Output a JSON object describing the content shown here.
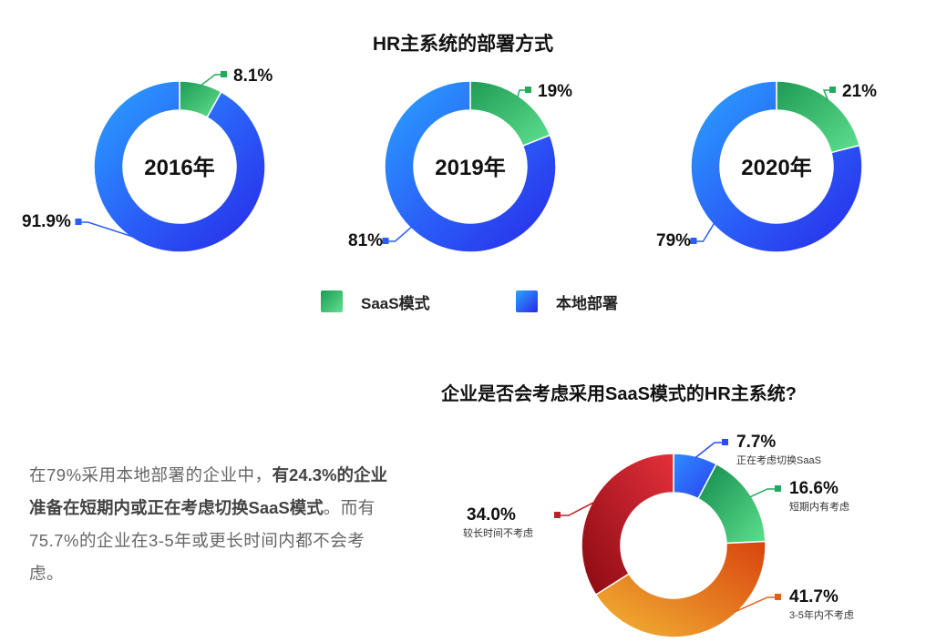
{
  "colors": {
    "saas": "#2fb86a",
    "local": "#2a3ff5",
    "pie2": [
      "#2a4df0",
      "#1ea860",
      "#e0601a",
      "#c41e2a"
    ]
  },
  "chart_data": [
    {
      "type": "pie",
      "title": "HR主系统的部署方式",
      "legend": [
        "SaaS模式",
        "本地部署"
      ],
      "donuts": [
        {
          "center_label": "2016年",
          "values": [
            8.1,
            91.9
          ],
          "labels": [
            "8.1%",
            "91.9%"
          ]
        },
        {
          "center_label": "2019年",
          "values": [
            19,
            81
          ],
          "labels": [
            "19%",
            "81%"
          ]
        },
        {
          "center_label": "2020年",
          "values": [
            21,
            79
          ],
          "labels": [
            "21%",
            "79%"
          ]
        }
      ]
    },
    {
      "type": "pie",
      "title": "企业是否会考虑采用SaaS模式的HR主系统?",
      "slices": [
        {
          "name": "正在考虑切换SaaS",
          "value": 7.7,
          "label": "7.7%"
        },
        {
          "name": "短期内有考虑",
          "value": 16.6,
          "label": "16.6%"
        },
        {
          "name": "3-5年内不考虑",
          "value": 41.7,
          "label": "41.7%"
        },
        {
          "name": "较长时间不考虑",
          "value": 34.0,
          "label": "34.0%"
        }
      ]
    }
  ],
  "paragraph": {
    "part1": "在79%采用本地部署的企业中，",
    "part2": "有24.3%的企业准备在短期内或正在考虑切换SaaS模式",
    "part3": "。而有75.7%的企业在3-5年或更长时间内都不会考虑。"
  }
}
